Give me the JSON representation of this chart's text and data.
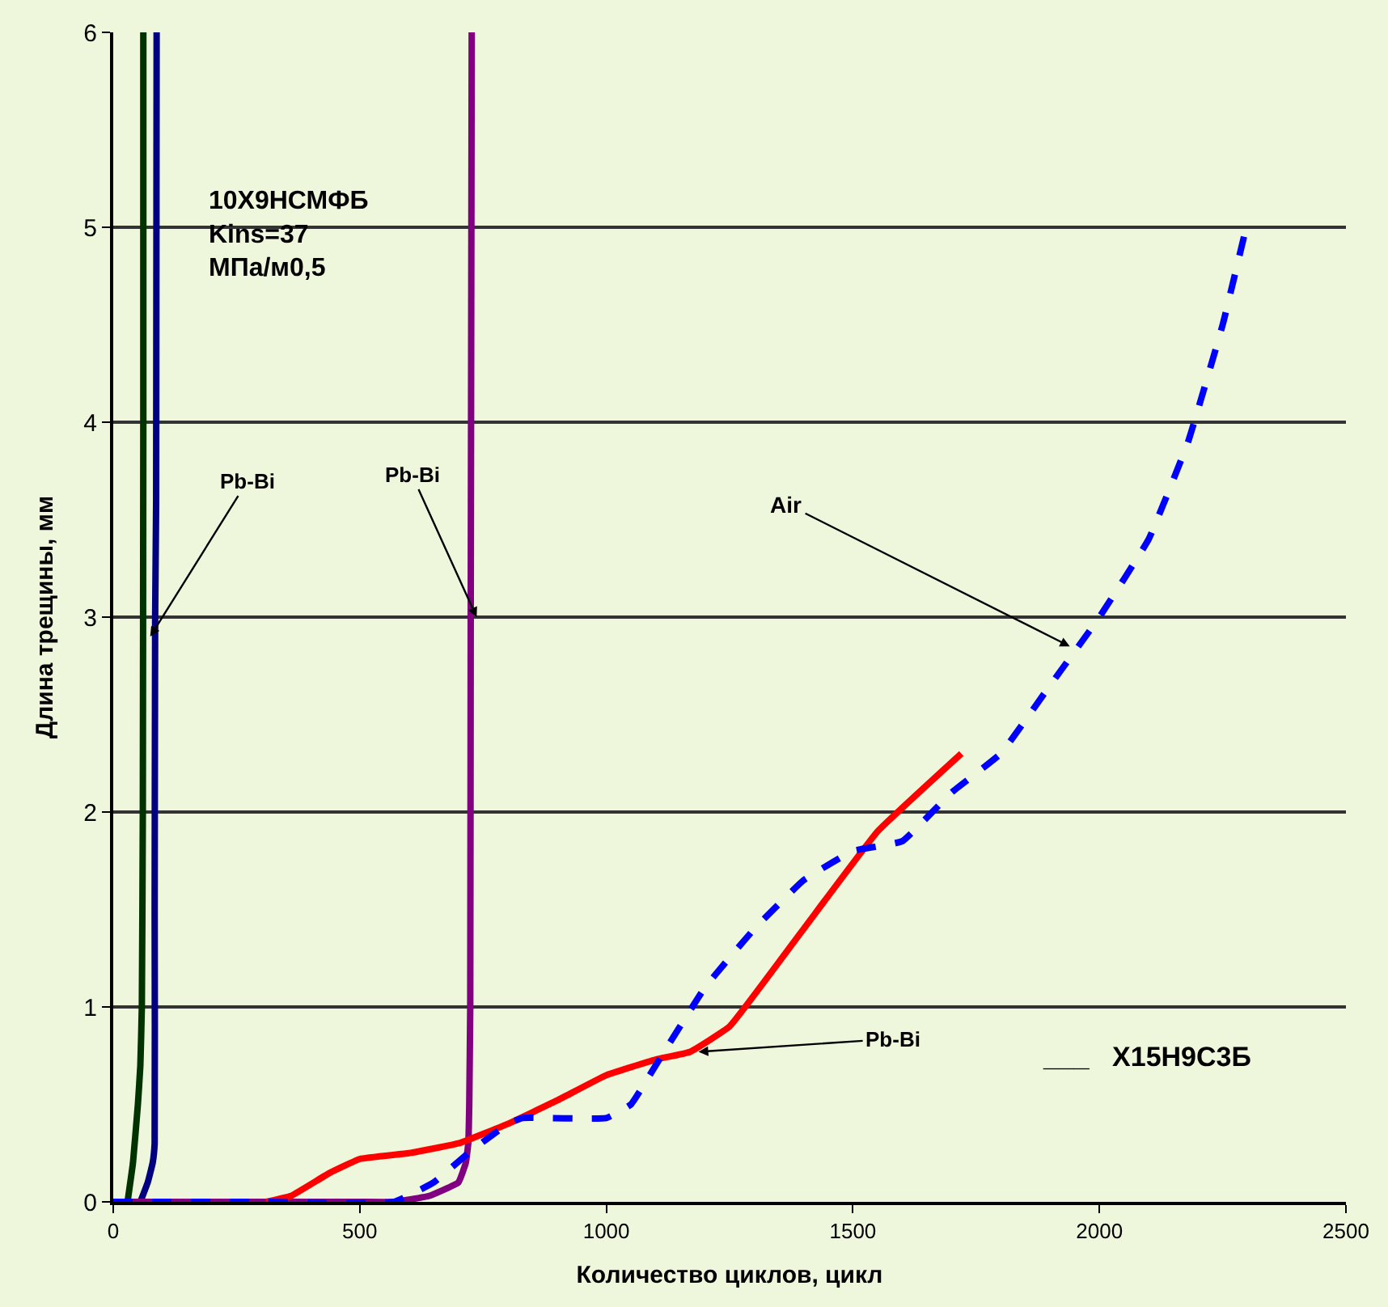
{
  "chart_data": {
    "type": "line",
    "xlabel": "Количество циклов, цикл",
    "ylabel": "Длина трещины, мм",
    "xlim": [
      0,
      2500
    ],
    "xticks": [
      0,
      500,
      1000,
      1500,
      2000,
      2500
    ],
    "ylim": [
      0,
      6
    ],
    "yticks": [
      0,
      1,
      2,
      3,
      4,
      5,
      6
    ],
    "grid": "y",
    "legend": false,
    "marker": "none",
    "series": [
      {
        "color": "#003300",
        "line_style": "solid",
        "x": [
          29,
          40,
          50,
          55,
          58,
          60,
          61,
          61
        ],
        "values": [
          0,
          0.2,
          0.5,
          0.7,
          1.0,
          2.0,
          4.0,
          6.0
        ]
      },
      {
        "color": "#000080",
        "line_style": "solid",
        "x": [
          55,
          70,
          80,
          84,
          84,
          85,
          87,
          88
        ],
        "values": [
          0,
          0.1,
          0.2,
          0.3,
          1.5,
          3.0,
          3.6,
          6.0
        ]
      },
      {
        "color": "#800080",
        "line_style": "solid",
        "x": [
          0,
          500,
          570,
          640,
          700,
          715,
          720,
          722,
          724,
          725,
          727
        ],
        "values": [
          0,
          0,
          0,
          0.03,
          0.1,
          0.2,
          0.3,
          0.5,
          1.0,
          3.0,
          6.0
        ]
      },
      {
        "color": "#ff0000",
        "line_style": "solid",
        "x": [
          310,
          360,
          440,
          500,
          600,
          700,
          800,
          900,
          1000,
          1100,
          1170,
          1250,
          1400,
          1550,
          1720
        ],
        "values": [
          0,
          0.03,
          0.15,
          0.22,
          0.25,
          0.3,
          0.4,
          0.52,
          0.65,
          0.73,
          0.77,
          0.9,
          1.4,
          1.9,
          2.3
        ]
      },
      {
        "color": "#0000ff",
        "line_style": "dashed",
        "x": [
          0,
          300,
          570,
          650,
          720,
          800,
          830,
          1000,
          1050,
          1100,
          1200,
          1300,
          1400,
          1500,
          1600,
          1700,
          1800,
          1900,
          2000,
          2100,
          2180,
          2250,
          2294
        ],
        "values": [
          0,
          0,
          0,
          0.1,
          0.25,
          0.4,
          0.43,
          0.43,
          0.5,
          0.7,
          1.1,
          1.4,
          1.65,
          1.8,
          1.85,
          2.1,
          2.3,
          2.65,
          3.0,
          3.4,
          3.9,
          4.5,
          4.96
        ]
      }
    ],
    "annotations": [
      "10Х9НСМФБ\nKins=37\nМПа/м0,5",
      {
        "text": "Pb-Bi",
        "x": 75,
        "y": 2.9
      },
      {
        "text": "Pb-Bi",
        "x": 737,
        "y": 3.0
      },
      {
        "text": "Air",
        "x": 1940,
        "y": 2.85
      },
      {
        "text": "Pb-Bi",
        "x": 1187,
        "y": 0.77
      },
      "___   Х15Н9С3Б"
    ]
  }
}
